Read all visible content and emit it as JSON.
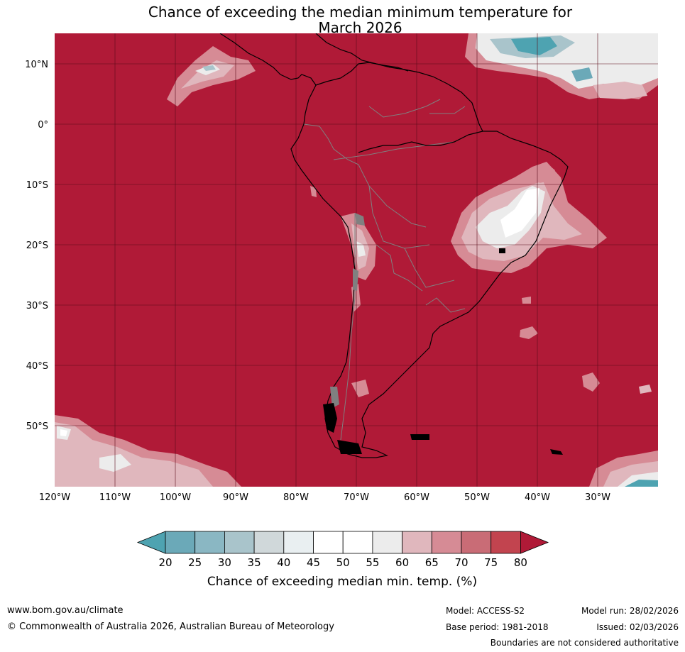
{
  "title_line1": "Chance of exceeding the median minimum temperature for",
  "title_line2": "March 2026",
  "lat_labels": [
    "10°N",
    "0°",
    "10°S",
    "20°S",
    "30°S",
    "40°S",
    "50°S"
  ],
  "lon_labels": [
    "120°W",
    "110°W",
    "100°W",
    "90°W",
    "80°W",
    "70°W",
    "60°W",
    "50°W",
    "40°W",
    "30°W"
  ],
  "colorbar": {
    "title": "Chance of exceeding median min. temp. (%)",
    "ticks": [
      "20",
      "25",
      "30",
      "35",
      "40",
      "45",
      "50",
      "55",
      "60",
      "65",
      "70",
      "75",
      "80"
    ],
    "colors": [
      "#4ea3b1",
      "#6ba9b8",
      "#8ab7c3",
      "#a9c4cb",
      "#d0d8da",
      "#e9eff1",
      "#ffffff",
      "#ffffff",
      "#ececec",
      "#e0b7bd",
      "#d68b95",
      "#c96c76",
      "#c2444f",
      "#b01a37"
    ]
  },
  "colors": {
    "high": "#b01a37",
    "c75": "#c2444f",
    "c70": "#c96c76",
    "c65": "#d68b95",
    "c60": "#e0b7bd",
    "neutral": "#ececec",
    "white": "#ffffff",
    "c35": "#a9c4cb",
    "c25": "#6ba9b8",
    "low": "#4ea3b1",
    "coast": "#000000",
    "border": "#808080"
  },
  "footer": {
    "website": "www.bom.gov.au/climate",
    "copyright": "© Commonwealth of Australia 2026, Australian Bureau of Meteorology",
    "model": "Model: ACCESS-S2",
    "base_period": "Base period: 1981-2018",
    "model_run": "Model run: 28/02/2026",
    "issued": "Issued: 02/03/2026",
    "disclaimer": "Boundaries are not considered authoritative"
  }
}
